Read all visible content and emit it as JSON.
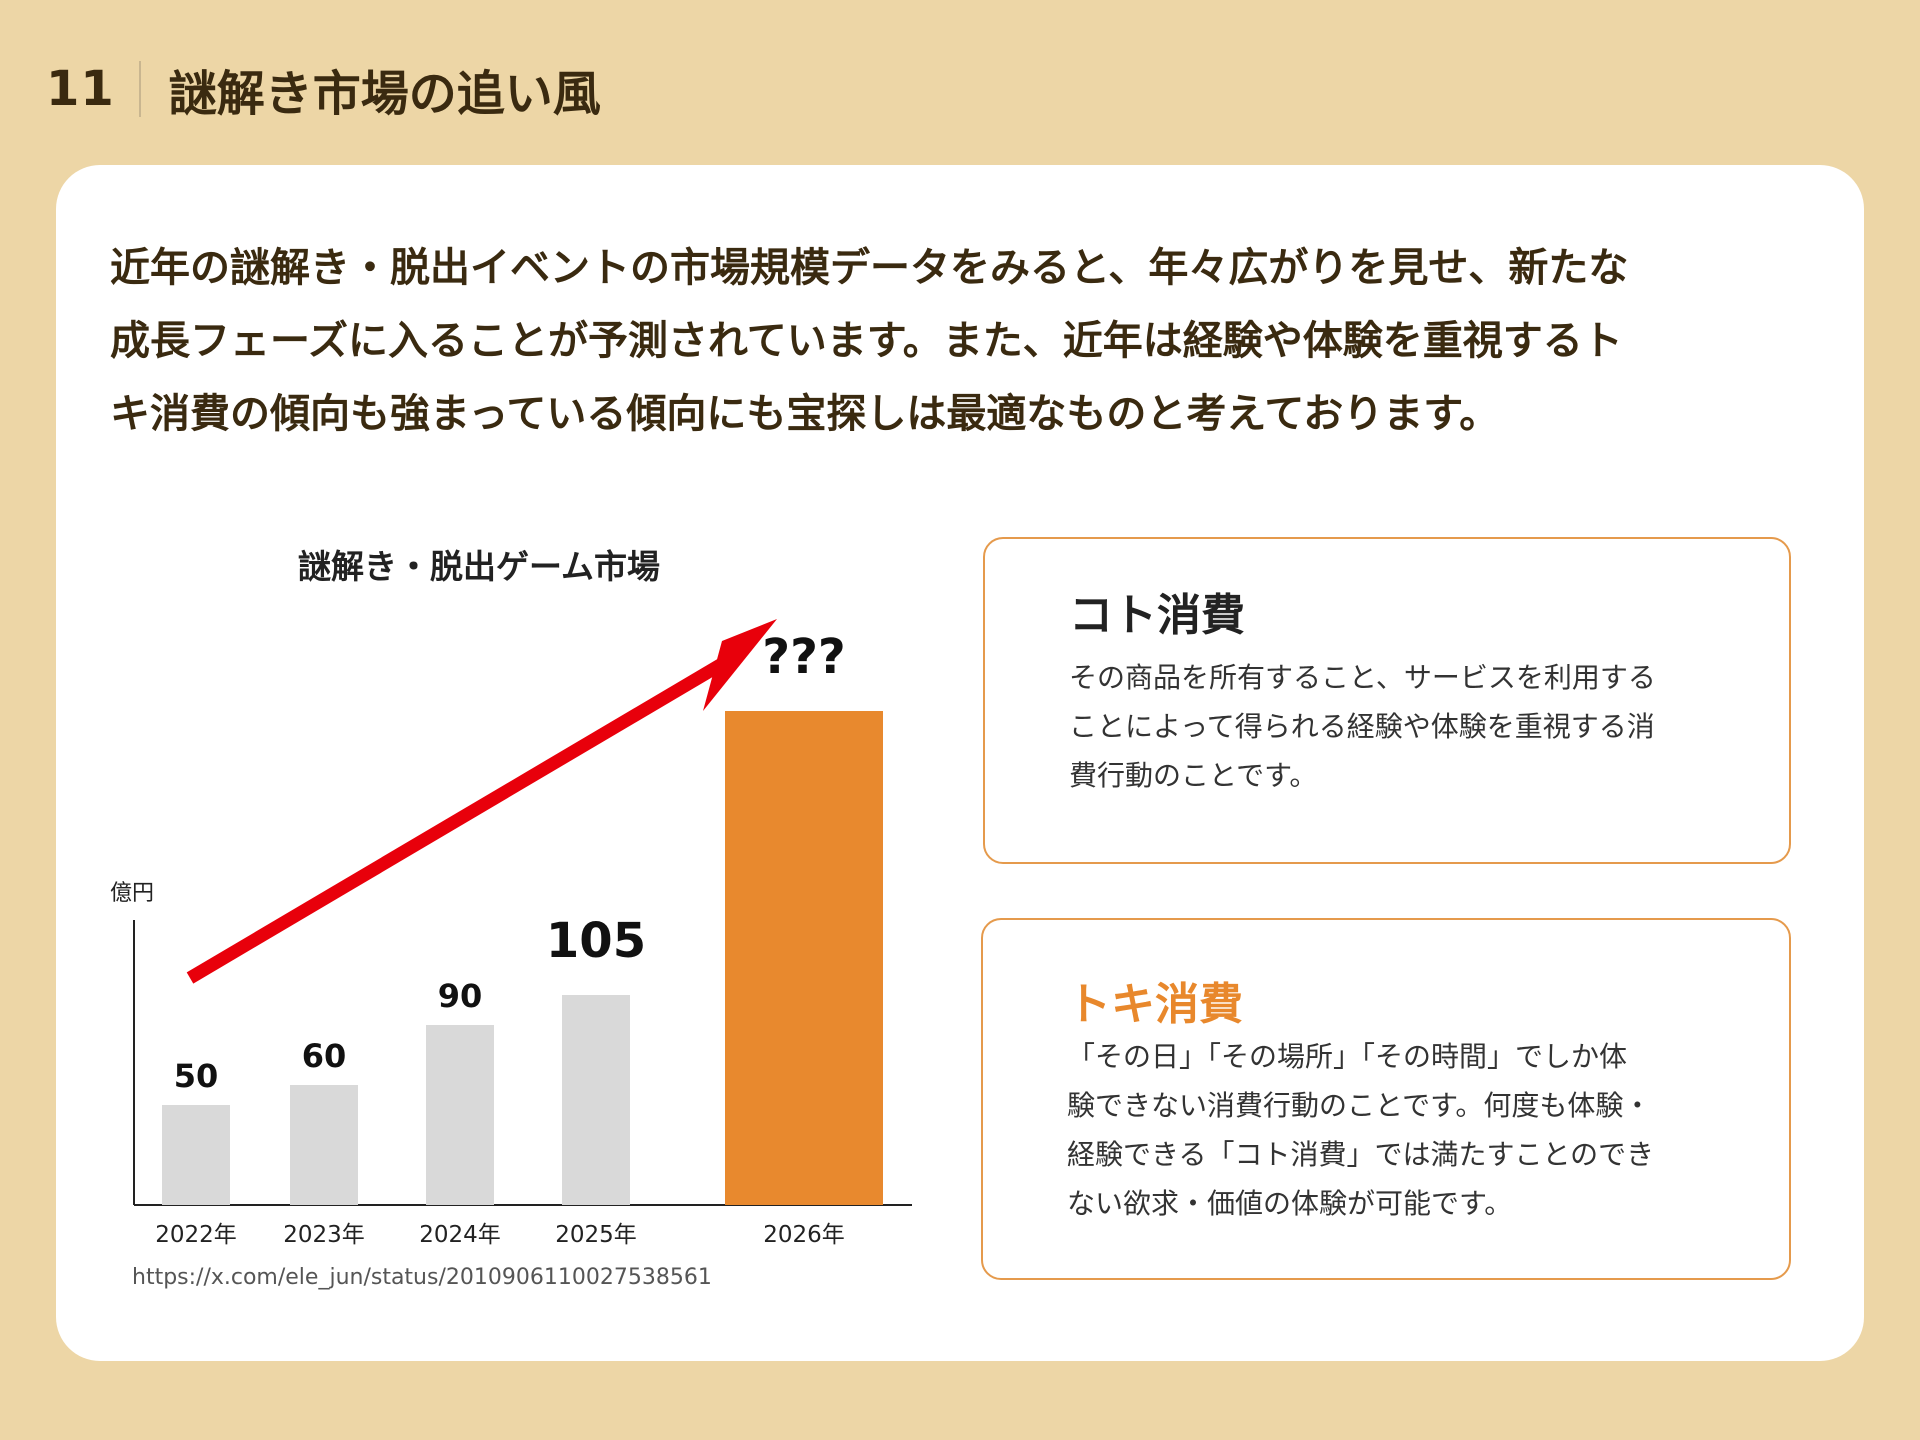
{
  "header": {
    "page_number": "11",
    "title": "謎解き市場の追い風"
  },
  "lead": {
    "lines": [
      "近年の謎解き・脱出イベントの市場規模データをみると、年々広がりを見せ、新たな",
      "成長フェーズに入ることが予測されています。また、近年は経験や体験を重視するト",
      "キ消費の傾向も強まっている傾向にも宝探しは最適なものと考えております。"
    ]
  },
  "chart_data": {
    "type": "bar",
    "title": "謎解き・脱出ゲーム市場",
    "ylabel": "億円",
    "xlabel": "",
    "categories": [
      "2022年",
      "2023年",
      "2024年",
      "2025年",
      "2026年"
    ],
    "values": [
      50,
      60,
      90,
      105,
      null
    ],
    "data_labels": [
      "50",
      "60",
      "90",
      "105",
      "???"
    ],
    "highlight_index": 4,
    "colors": {
      "default_bar": "#D9D9D9",
      "highlight_bar": "#E8892E",
      "arrow": "#E8000B",
      "axis": "#222222"
    },
    "annotation": "upward trend arrow from 2022 to 2026",
    "grid": false,
    "legend": "none"
  },
  "source": "https://x.com/ele_jun/status/2010906110027538561",
  "koto": {
    "heading": "コト消費",
    "lines": [
      "その商品を所有すること、サービスを利用する",
      "ことによって得られる経験や体験を重視する消",
      "費行動のことです。"
    ]
  },
  "toki": {
    "heading": "トキ消費",
    "lines": [
      "「その日」「その場所」「その時間」でしか体",
      "験できない消費行動のことです。何度も体験・",
      "経験できる「コト消費」では満たすことのでき",
      "ない欲求・価値の体験が可能です。"
    ]
  },
  "colors": {
    "background": "#EDD6A6",
    "card": "#FFFFFF",
    "text_dark": "#3A2A10",
    "accent_orange": "#E8882C",
    "box_border": "#E59A4C"
  }
}
